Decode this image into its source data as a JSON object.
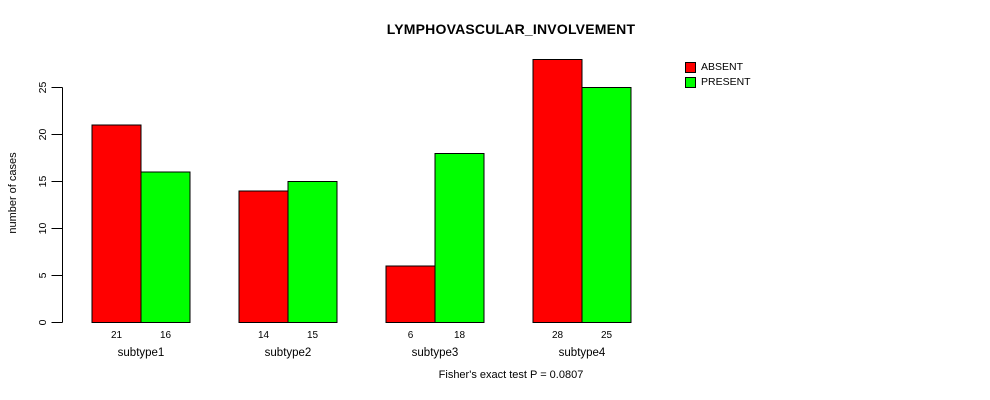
{
  "chart_data": {
    "type": "bar",
    "title": "LYMPHOVASCULAR_INVOLVEMENT",
    "ylabel": "number of cases",
    "xlabel": "",
    "categories": [
      "subtype1",
      "subtype2",
      "subtype3",
      "subtype4"
    ],
    "series": [
      {
        "name": "ABSENT",
        "color": "#FF0000",
        "values": [
          21,
          14,
          6,
          28
        ]
      },
      {
        "name": "PRESENT",
        "color": "#00FF00",
        "values": [
          16,
          15,
          18,
          25
        ]
      }
    ],
    "value_labels": {
      "ABSENT": [
        "21",
        "14",
        "6",
        "28"
      ],
      "PRESENT": [
        "16",
        "15",
        "18",
        "25"
      ]
    },
    "yticks": [
      0,
      5,
      10,
      15,
      20,
      25
    ],
    "ylim": [
      0,
      28
    ],
    "grid": false,
    "bar_border_color": "#000000",
    "axis_color": "#000000",
    "legend_position": "top-right",
    "annotation": "Fisher's exact test P = 0.0807"
  }
}
